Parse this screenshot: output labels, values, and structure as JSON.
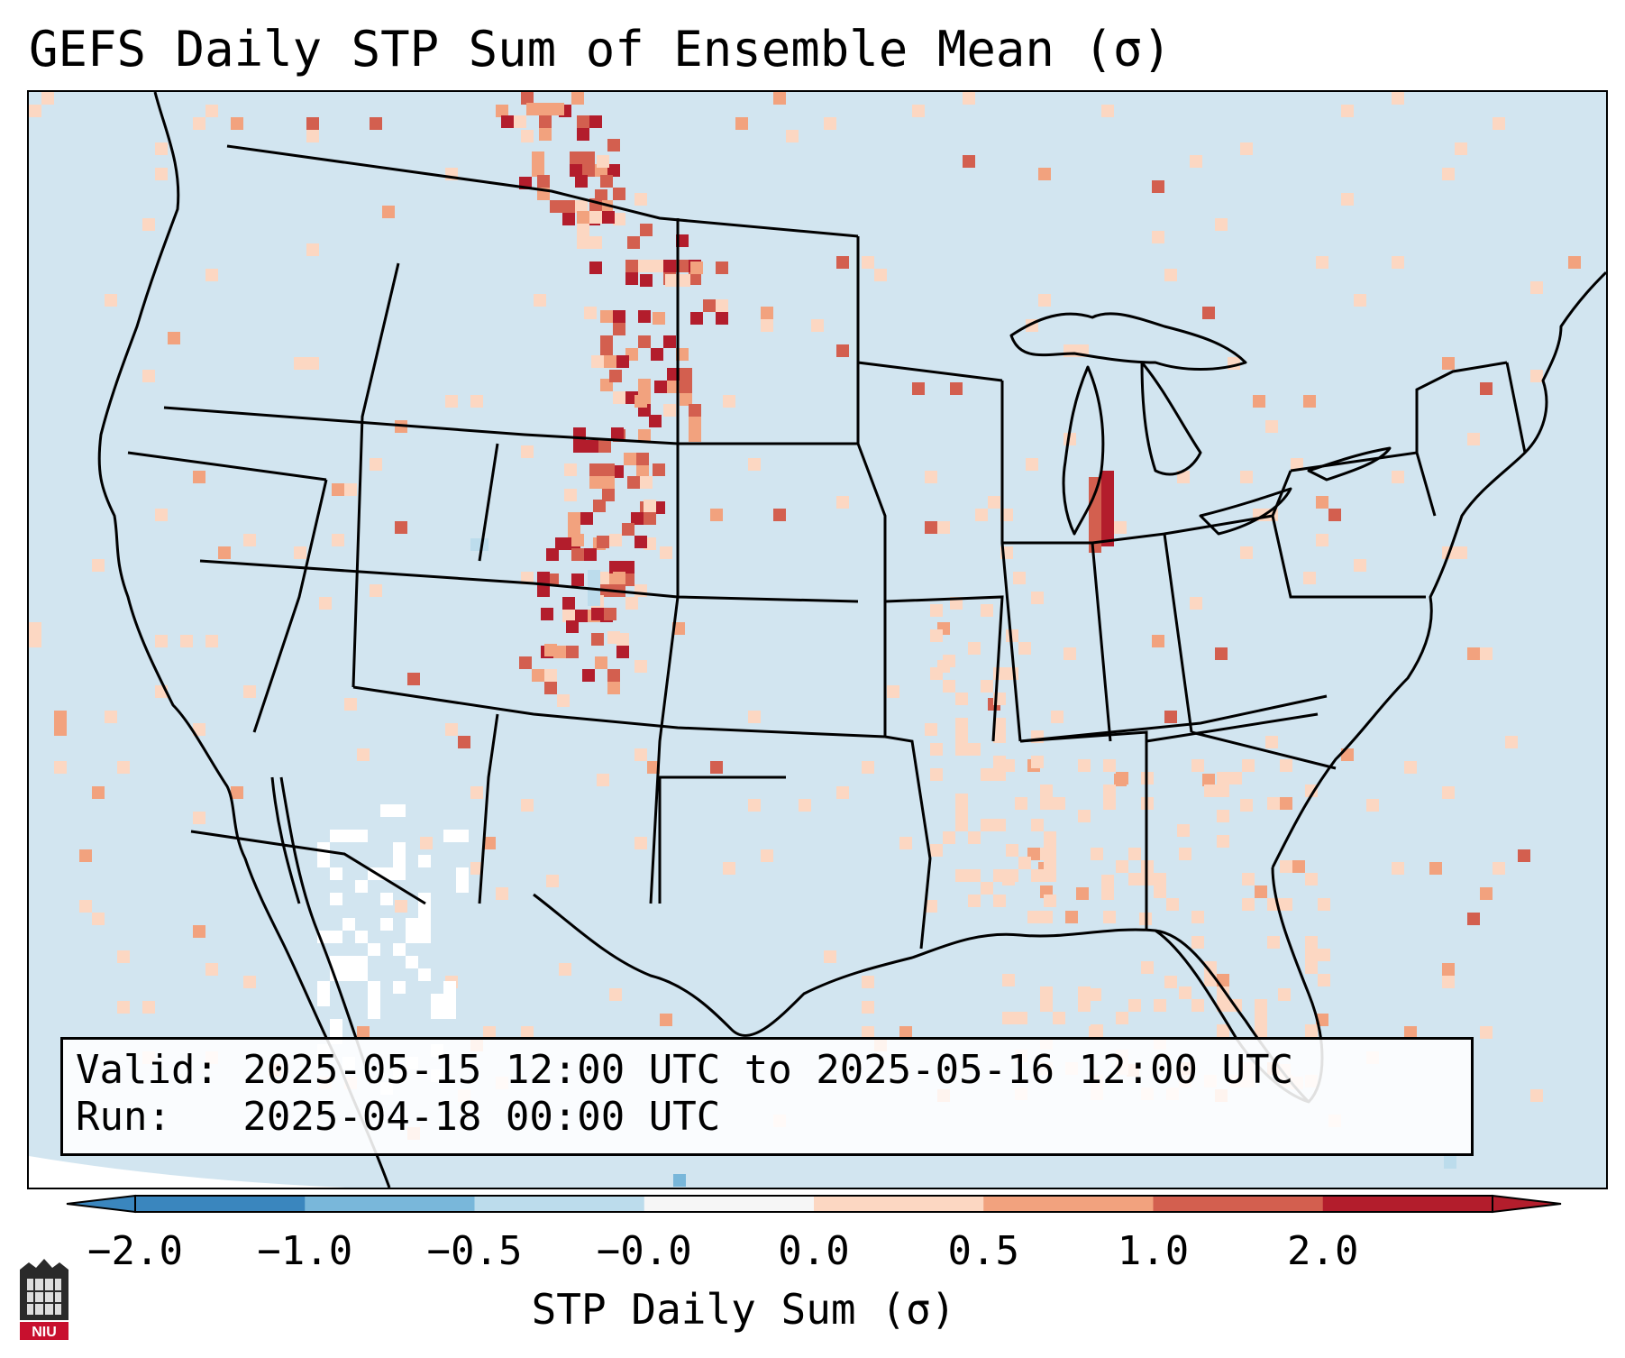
{
  "title": "GEFS Daily STP Sum of Ensemble Mean (σ)",
  "info": {
    "valid_line": "Valid: 2025-05-15 12:00 UTC to 2025-05-16 12:00 UTC",
    "run_line": "Run:   2025-04-18 00:00 UTC"
  },
  "colorbar": {
    "label": "STP Daily Sum (σ)",
    "ticks": [
      "−2.0",
      "−1.0",
      "−0.5",
      "−0.0",
      "0.0",
      "0.5",
      "1.0",
      "2.0"
    ],
    "colors": [
      "#3a86be",
      "#79b7da",
      "#bcdcec",
      "#f6f6f6",
      "#fcd7c2",
      "#f2a27e",
      "#d35f4f",
      "#b31d2c"
    ],
    "extend": "both"
  },
  "map": {
    "region": "CONUS",
    "background_color": "#d2e5f0",
    "feature_color": "#b31d2c"
  },
  "logo": {
    "text": "NIU"
  }
}
